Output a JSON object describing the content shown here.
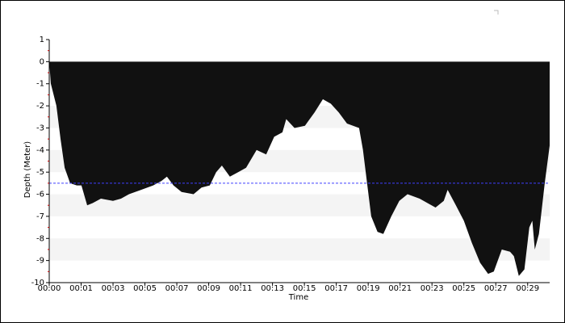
{
  "chart_data": {
    "type": "area",
    "y_label": "Depth (Meter)",
    "x_label": "Time",
    "x": [
      0,
      6,
      26,
      41,
      56,
      76,
      100,
      117,
      138,
      158,
      188,
      232,
      261,
      290,
      334,
      378,
      408,
      428,
      452,
      481,
      525,
      554,
      584,
      607,
      628,
      657,
      687,
      716,
      754,
      789,
      818,
      848,
      862,
      892,
      930,
      965,
      995,
      1024,
      1053,
      1083,
      1127,
      1141,
      1156,
      1171,
      1194,
      1215,
      1244,
      1273,
      1303,
      1347,
      1376,
      1405,
      1435,
      1449,
      1479,
      1508,
      1537,
      1567,
      1596,
      1617,
      1646,
      1676,
      1690,
      1708,
      1728,
      1746,
      1757,
      1766,
      1781,
      1802,
      1820
    ],
    "values": [
      0,
      -1,
      -2,
      -3.5,
      -4.8,
      -5.5,
      -5.6,
      -5.6,
      -6.5,
      -6.4,
      -6.2,
      -6.3,
      -6.2,
      -6,
      -5.8,
      -5.6,
      -5.4,
      -5.2,
      -5.6,
      -5.9,
      -6,
      -5.7,
      -5.6,
      -5,
      -4.7,
      -5.2,
      -5,
      -4.8,
      -4,
      -4.2,
      -3.4,
      -3.2,
      -2.6,
      -3,
      -2.9,
      -2.3,
      -1.7,
      -1.9,
      -2.3,
      -2.8,
      -3,
      -4,
      -5.5,
      -7,
      -7.7,
      -7.8,
      -7,
      -6.3,
      -6,
      -6.2,
      -6.4,
      -6.6,
      -6.3,
      -5.8,
      -6.5,
      -7.2,
      -8.2,
      -9.1,
      -9.6,
      -9.5,
      -8.5,
      -8.6,
      -8.8,
      -9.7,
      -9.4,
      -7.5,
      -7.2,
      -8.5,
      -7.8,
      -5.5,
      -3.8
    ],
    "color": "#111111",
    "hline": -5.5,
    "hline_color": "#4040ff",
    "xlim": [
      0,
      1820
    ],
    "xticks": [
      {
        "value": 0,
        "label": "00:00"
      },
      {
        "value": 116,
        "label": "00:01"
      },
      {
        "value": 232,
        "label": "00:03"
      },
      {
        "value": 348,
        "label": "00:05"
      },
      {
        "value": 464,
        "label": "00:07"
      },
      {
        "value": 580,
        "label": "00:09"
      },
      {
        "value": 696,
        "label": "00:11"
      },
      {
        "value": 812,
        "label": "00:13"
      },
      {
        "value": 928,
        "label": "00:15"
      },
      {
        "value": 1044,
        "label": "00:17"
      },
      {
        "value": 1160,
        "label": "00:19"
      },
      {
        "value": 1276,
        "label": "00:21"
      },
      {
        "value": 1392,
        "label": "00:23"
      },
      {
        "value": 1508,
        "label": "00:25"
      },
      {
        "value": 1624,
        "label": "00:27"
      },
      {
        "value": 1740,
        "label": "00:29"
      }
    ],
    "ylim": [
      -10,
      1
    ],
    "yticks": [
      1,
      0,
      -1,
      -2,
      -3,
      -4,
      -5,
      -6,
      -7,
      -8,
      -9,
      -10
    ],
    "bands": true
  }
}
